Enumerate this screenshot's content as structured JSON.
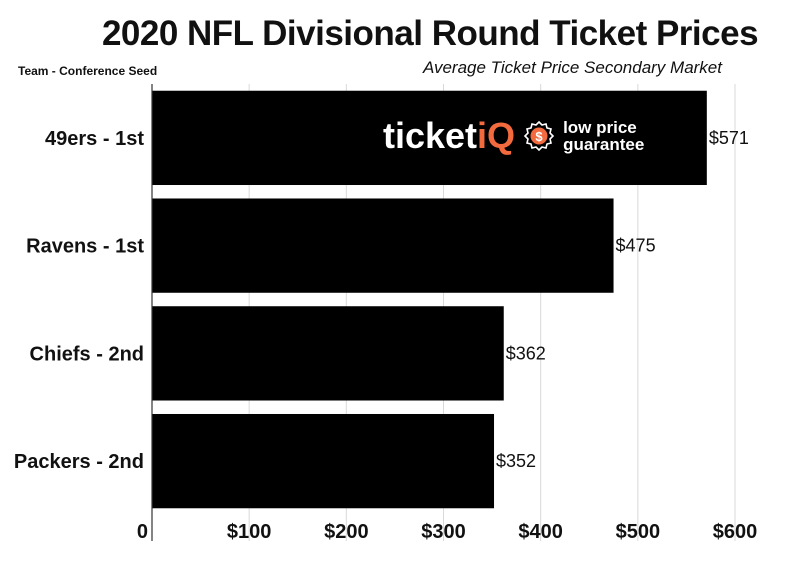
{
  "chart_data": {
    "type": "bar",
    "orientation": "horizontal",
    "title": "2020 NFL Divisional Round Ticket Prices",
    "subtitle": "Average Ticket Price Secondary Market",
    "ylabel": "Team - Conference Seed",
    "categories": [
      "49ers - 1st",
      "Ravens - 1st",
      "Chiefs - 2nd",
      "Packers - 2nd"
    ],
    "values": [
      571,
      475,
      362,
      352
    ],
    "value_labels": [
      "$571",
      "$475",
      "$362",
      "$352"
    ],
    "xlim": [
      0,
      600
    ],
    "xticks": [
      0,
      100,
      200,
      300,
      400,
      500,
      600
    ],
    "xtick_labels": [
      "0",
      "$100",
      "$200",
      "$300",
      "$400",
      "$500",
      "$600"
    ],
    "grid": true,
    "bar_color": "#000000",
    "grid_color": "#d9d9d9"
  },
  "logo": {
    "word_main": "ticket",
    "word_accent": "iQ",
    "tagline_1": "low price",
    "tagline_2": "guarantee",
    "badge_symbol": "$",
    "accent_color": "#f26a3d"
  }
}
